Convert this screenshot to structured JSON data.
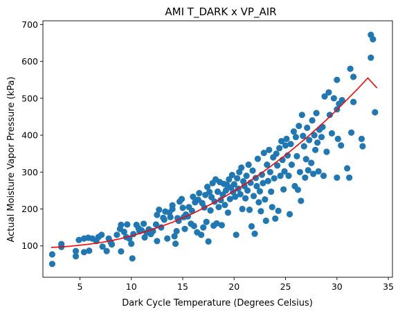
{
  "chart_data": {
    "type": "scatter",
    "title": "AMI T_DARK x VP_AIR",
    "xlabel": "Dark Cycle Temperature (Degrees Celsius)",
    "ylabel": "Actual Moisture Vapor Pressure (kPa)",
    "xlim": [
      1.4,
      35.4
    ],
    "ylim": [
      15,
      710
    ],
    "xticks": [
      5,
      10,
      15,
      20,
      25,
      30,
      35
    ],
    "yticks": [
      100,
      200,
      300,
      400,
      500,
      600,
      700
    ],
    "grid": false,
    "colors": {
      "points": "#1f77b4",
      "fit": "#ff0000"
    },
    "points": [
      [
        2.3,
        77
      ],
      [
        2.3,
        51
      ],
      [
        3.2,
        105
      ],
      [
        3.2,
        97
      ],
      [
        4.6,
        86
      ],
      [
        4.6,
        72
      ],
      [
        4.9,
        116
      ],
      [
        5.4,
        83
      ],
      [
        5.4,
        120
      ],
      [
        5.8,
        122
      ],
      [
        5.9,
        87
      ],
      [
        6.2,
        120
      ],
      [
        6.6,
        113
      ],
      [
        6.8,
        124
      ],
      [
        7.1,
        130
      ],
      [
        7.2,
        98
      ],
      [
        7.6,
        86
      ],
      [
        7.8,
        120
      ],
      [
        8.0,
        110
      ],
      [
        8.1,
        104
      ],
      [
        8.6,
        130
      ],
      [
        8.9,
        146
      ],
      [
        9.0,
        157
      ],
      [
        9.0,
        85
      ],
      [
        9.3,
        138
      ],
      [
        9.5,
        124
      ],
      [
        9.6,
        158
      ],
      [
        9.8,
        120
      ],
      [
        10.0,
        106
      ],
      [
        10.1,
        66
      ],
      [
        10.2,
        132
      ],
      [
        10.5,
        157
      ],
      [
        10.7,
        148
      ],
      [
        10.8,
        140
      ],
      [
        11.0,
        142
      ],
      [
        11.2,
        160
      ],
      [
        11.3,
        123
      ],
      [
        11.5,
        136
      ],
      [
        11.7,
        145
      ],
      [
        11.9,
        132
      ],
      [
        12.1,
        140
      ],
      [
        12.4,
        158
      ],
      [
        12.5,
        184
      ],
      [
        12.5,
        113
      ],
      [
        12.7,
        198
      ],
      [
        12.9,
        150
      ],
      [
        13.1,
        176
      ],
      [
        13.2,
        171
      ],
      [
        13.3,
        193
      ],
      [
        13.5,
        120
      ],
      [
        13.7,
        190
      ],
      [
        13.8,
        178
      ],
      [
        14.0,
        210
      ],
      [
        14.0,
        200
      ],
      [
        14.2,
        126
      ],
      [
        14.3,
        106
      ],
      [
        14.4,
        140
      ],
      [
        14.5,
        175
      ],
      [
        14.6,
        168
      ],
      [
        14.7,
        220
      ],
      [
        14.9,
        227
      ],
      [
        15.0,
        203
      ],
      [
        15.1,
        178
      ],
      [
        15.2,
        146
      ],
      [
        15.3,
        185
      ],
      [
        15.5,
        180
      ],
      [
        15.6,
        205
      ],
      [
        15.8,
        160
      ],
      [
        15.9,
        195
      ],
      [
        16.0,
        233
      ],
      [
        16.1,
        154
      ],
      [
        16.2,
        218
      ],
      [
        16.4,
        137
      ],
      [
        16.5,
        225
      ],
      [
        16.6,
        243
      ],
      [
        16.8,
        130
      ],
      [
        16.9,
        216
      ],
      [
        17.0,
        150
      ],
      [
        17.1,
        204
      ],
      [
        17.2,
        238
      ],
      [
        17.3,
        165
      ],
      [
        17.4,
        260
      ],
      [
        17.5,
        112
      ],
      [
        17.6,
        246
      ],
      [
        17.7,
        196
      ],
      [
        17.8,
        232
      ],
      [
        17.9,
        270
      ],
      [
        18.0,
        155
      ],
      [
        18.1,
        220
      ],
      [
        18.2,
        280
      ],
      [
        18.3,
        161
      ],
      [
        18.4,
        247
      ],
      [
        18.5,
        205
      ],
      [
        18.6,
        273
      ],
      [
        18.7,
        224
      ],
      [
        18.8,
        156
      ],
      [
        18.9,
        239
      ],
      [
        19.0,
        268
      ],
      [
        19.1,
        211
      ],
      [
        19.2,
        250
      ],
      [
        19.3,
        265
      ],
      [
        19.4,
        190
      ],
      [
        19.5,
        280
      ],
      [
        19.6,
        227
      ],
      [
        19.7,
        258
      ],
      [
        19.8,
        292
      ],
      [
        19.9,
        246
      ],
      [
        20.0,
        267
      ],
      [
        20.1,
        233
      ],
      [
        20.2,
        130
      ],
      [
        20.3,
        283
      ],
      [
        20.4,
        255
      ],
      [
        20.5,
        300
      ],
      [
        20.6,
        240
      ],
      [
        20.7,
        312
      ],
      [
        20.8,
        200
      ],
      [
        20.9,
        275
      ],
      [
        21.0,
        262
      ],
      [
        21.1,
        229
      ],
      [
        21.2,
        290
      ],
      [
        21.3,
        250
      ],
      [
        21.4,
        320
      ],
      [
        21.5,
        198
      ],
      [
        21.6,
        271
      ],
      [
        21.7,
        153
      ],
      [
        21.8,
        304
      ],
      [
        21.9,
        235
      ],
      [
        22.0,
        133
      ],
      [
        22.1,
        284
      ],
      [
        22.2,
        262
      ],
      [
        22.3,
        336
      ],
      [
        22.4,
        218
      ],
      [
        22.5,
        248
      ],
      [
        22.6,
        194
      ],
      [
        22.7,
        293
      ],
      [
        22.8,
        270
      ],
      [
        22.9,
        352
      ],
      [
        23.0,
        226
      ],
      [
        23.1,
        168
      ],
      [
        23.2,
        320
      ],
      [
        23.3,
        276
      ],
      [
        23.4,
        360
      ],
      [
        23.5,
        300
      ],
      [
        23.6,
        247
      ],
      [
        23.7,
        205
      ],
      [
        23.8,
        340
      ],
      [
        23.9,
        283
      ],
      [
        24.0,
        174
      ],
      [
        24.1,
        350
      ],
      [
        24.2,
        318
      ],
      [
        24.3,
        195
      ],
      [
        24.4,
        365
      ],
      [
        24.5,
        290
      ],
      [
        24.6,
        384
      ],
      [
        24.7,
        333
      ],
      [
        24.8,
        253
      ],
      [
        24.9,
        302
      ],
      [
        25.0,
        372
      ],
      [
        25.1,
        390
      ],
      [
        25.2,
        345
      ],
      [
        25.3,
        290
      ],
      [
        25.4,
        186
      ],
      [
        25.5,
        376
      ],
      [
        25.6,
        320
      ],
      [
        25.8,
        410
      ],
      [
        25.9,
        262
      ],
      [
        26.0,
        395
      ],
      [
        26.1,
        343
      ],
      [
        26.2,
        252
      ],
      [
        26.3,
        425
      ],
      [
        26.4,
        300
      ],
      [
        26.5,
        222
      ],
      [
        26.6,
        455
      ],
      [
        26.7,
        398
      ],
      [
        26.8,
        370
      ],
      [
        26.9,
        285
      ],
      [
        27.0,
        335
      ],
      [
        27.1,
        420
      ],
      [
        27.2,
        305
      ],
      [
        27.3,
        387
      ],
      [
        27.5,
        325
      ],
      [
        27.6,
        440
      ],
      [
        27.7,
        295
      ],
      [
        27.8,
        400
      ],
      [
        27.9,
        360
      ],
      [
        28.0,
        460
      ],
      [
        28.1,
        380
      ],
      [
        28.2,
        302
      ],
      [
        28.3,
        415
      ],
      [
        28.5,
        395
      ],
      [
        28.6,
        422
      ],
      [
        28.7,
        290
      ],
      [
        28.8,
        505
      ],
      [
        29.0,
        355
      ],
      [
        29.2,
        516
      ],
      [
        29.3,
        455
      ],
      [
        29.5,
        405
      ],
      [
        29.7,
        500
      ],
      [
        30.0,
        550
      ],
      [
        30.0,
        470
      ],
      [
        30.0,
        285
      ],
      [
        30.1,
        390
      ],
      [
        30.2,
        485
      ],
      [
        30.4,
        372
      ],
      [
        30.5,
        495
      ],
      [
        31.0,
        310
      ],
      [
        31.2,
        285
      ],
      [
        31.3,
        580
      ],
      [
        31.4,
        407
      ],
      [
        31.6,
        490
      ],
      [
        31.6,
        558
      ],
      [
        32.4,
        390
      ],
      [
        32.5,
        370
      ],
      [
        33.3,
        672
      ],
      [
        33.3,
        610
      ],
      [
        33.5,
        660
      ],
      [
        33.7,
        462
      ]
    ],
    "fit_curve": {
      "name": "",
      "x": [
        2.2,
        3,
        4,
        5,
        6,
        7,
        8,
        9,
        10,
        11,
        12,
        13,
        14,
        15,
        16,
        17,
        18,
        19,
        20,
        21,
        22,
        23,
        24,
        25,
        26,
        27,
        28,
        29,
        30,
        31,
        32,
        33,
        33.9
      ],
      "y": [
        96,
        97,
        99,
        102,
        105,
        109,
        114,
        120,
        127,
        135,
        144,
        154,
        164,
        176,
        188,
        202,
        217,
        232,
        249,
        266,
        285,
        304,
        325,
        346,
        369,
        392,
        417,
        442,
        469,
        497,
        525,
        555,
        528
      ]
    }
  }
}
